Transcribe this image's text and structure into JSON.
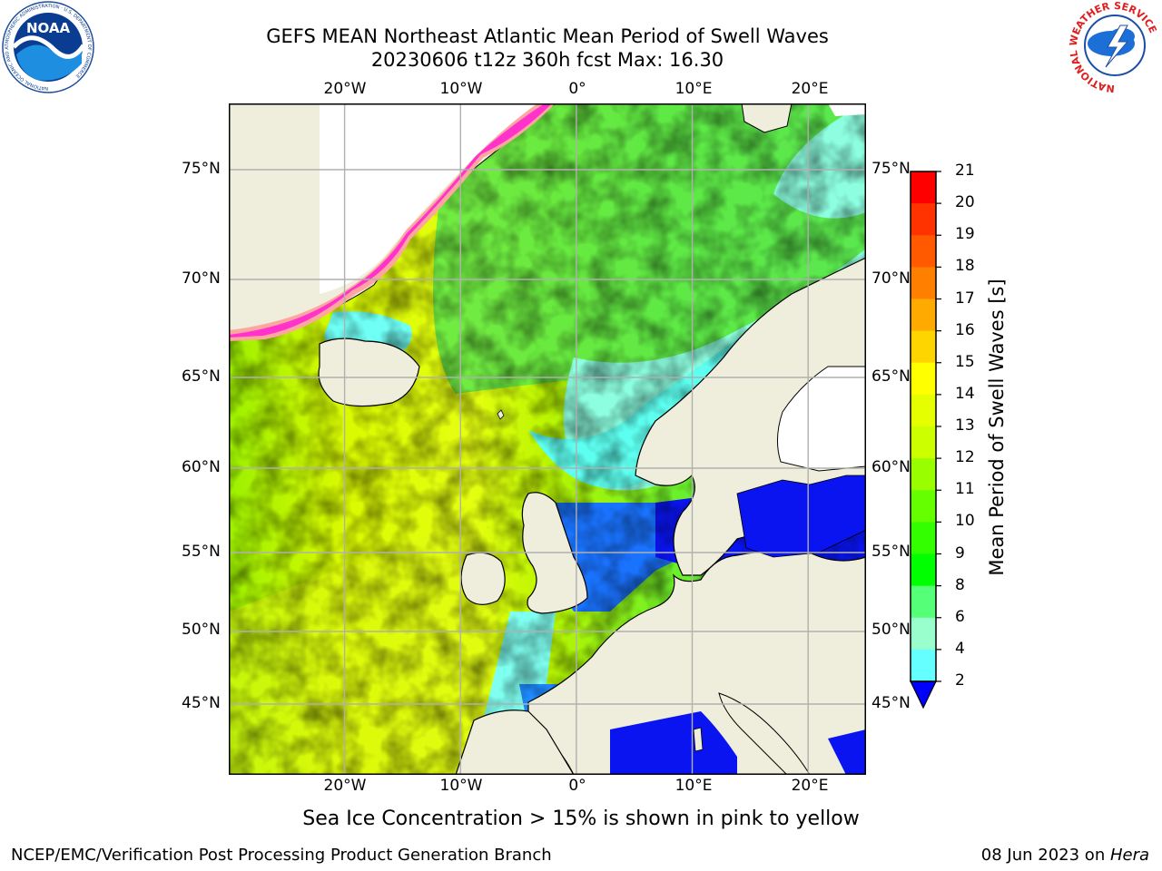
{
  "title": {
    "line1": "GEFS MEAN Northeast Atlantic Mean Period of Swell Waves",
    "line2": "20230606 t12z 360h fcst   Max: 16.30"
  },
  "map": {
    "lon_range": [
      -30,
      25
    ],
    "lat_range": [
      41,
      78
    ],
    "lon_ticks": [
      "20°W",
      "10°W",
      "0°",
      "10°E",
      "20°E"
    ],
    "lat_ticks": [
      "75°N",
      "70°N",
      "65°N",
      "60°N",
      "55°N",
      "50°N",
      "45°N"
    ],
    "colors": {
      "land": "#efeedc",
      "white_area": "#ffffff",
      "grid": "#b0b0b0"
    }
  },
  "colorbar": {
    "label": "Mean Period of Swell Waves [s]",
    "ticks": [
      "21",
      "20",
      "19",
      "18",
      "17",
      "16",
      "15",
      "14",
      "13",
      "12",
      "11",
      "10",
      "9",
      "8",
      "6",
      "4",
      "2"
    ],
    "colors": [
      "#ff0000",
      "#ff3300",
      "#ff5a00",
      "#ff8000",
      "#ffaa00",
      "#ffd500",
      "#ffff00",
      "#e6ff00",
      "#ccff00",
      "#99ff00",
      "#66ff00",
      "#33ff00",
      "#00ff00",
      "#55ff77",
      "#99ffcc",
      "#66ffff",
      "#00ffff",
      "#0099ff",
      "#0000ff"
    ]
  },
  "note": "Sea Ice Concentration > 15% is shown in pink to yellow",
  "footer": {
    "left": "NCEP/EMC/Verification Post Processing Product Generation Branch",
    "date": "08 Jun 2023 on ",
    "machine": "Hera"
  },
  "logos": {
    "noaa_text": "NOAA",
    "noaa_ring": "NATIONAL OCEANIC AND ATMOSPHERIC ADMINISTRATION · U.S. DEPARTMENT OF COMMERCE",
    "nws_ring": "NATIONAL WEATHER SERVICE"
  }
}
